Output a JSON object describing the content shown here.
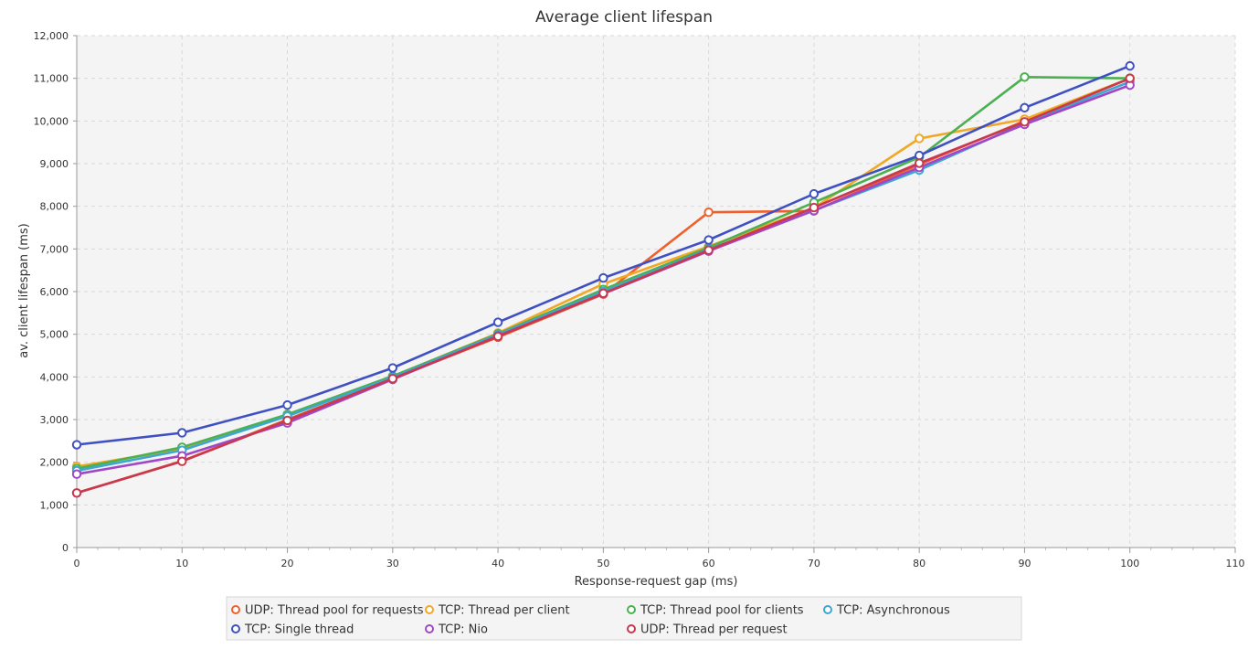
{
  "chart_data": {
    "type": "line",
    "title": "Average client lifespan",
    "xlabel": "Response-request gap (ms)",
    "ylabel": "av. client lifespan (ms)",
    "xlim": [
      0,
      110
    ],
    "ylim": [
      0,
      12000
    ],
    "x_ticks": [
      "0",
      "10",
      "20",
      "30",
      "40",
      "50",
      "60",
      "70",
      "80",
      "90",
      "100",
      "110"
    ],
    "y_ticks": [
      "0",
      "1,000",
      "2,000",
      "3,000",
      "4,000",
      "5,000",
      "6,000",
      "7,000",
      "8,000",
      "9,000",
      "10,000",
      "11,000",
      "12,000"
    ],
    "grid": true,
    "legend_position": "bottom",
    "x": [
      0,
      10,
      20,
      30,
      40,
      50,
      60,
      70,
      80,
      90,
      100
    ],
    "series": [
      {
        "name": "UDP: Thread pool for requests",
        "color": "#f0602c",
        "values": [
          1280,
          2030,
          3000,
          3960,
          4930,
          5940,
          7860,
          7890,
          8980,
          10000,
          11000
        ]
      },
      {
        "name": "TCP: Thread per client",
        "color": "#f2a825",
        "values": [
          1900,
          2310,
          3110,
          4010,
          5030,
          6180,
          7060,
          7960,
          9590,
          10040,
          11000
        ]
      },
      {
        "name": "TCP: Thread pool for clients",
        "color": "#4cb050",
        "values": [
          1850,
          2350,
          3120,
          4020,
          5010,
          6050,
          7030,
          8090,
          9150,
          11030,
          11000
        ]
      },
      {
        "name": "TCP: Asynchronous",
        "color": "#3ea7cf",
        "values": [
          1800,
          2280,
          3080,
          3990,
          4990,
          6000,
          6990,
          7900,
          8850,
          9950,
          10920
        ]
      },
      {
        "name": "TCP: Single thread",
        "color": "#3f51c2",
        "values": [
          2410,
          2690,
          3340,
          4210,
          5280,
          6320,
          7210,
          8290,
          9190,
          10310,
          11290
        ]
      },
      {
        "name": "TCP: Nio",
        "color": "#a246c8",
        "values": [
          1720,
          2150,
          2920,
          3940,
          4960,
          5950,
          6950,
          7900,
          8910,
          9920,
          10840
        ]
      },
      {
        "name": "UDP: Thread per request",
        "color": "#c8384e",
        "values": [
          1280,
          2020,
          2980,
          3960,
          4950,
          5960,
          6970,
          7970,
          9010,
          9980,
          11000
        ]
      }
    ]
  }
}
